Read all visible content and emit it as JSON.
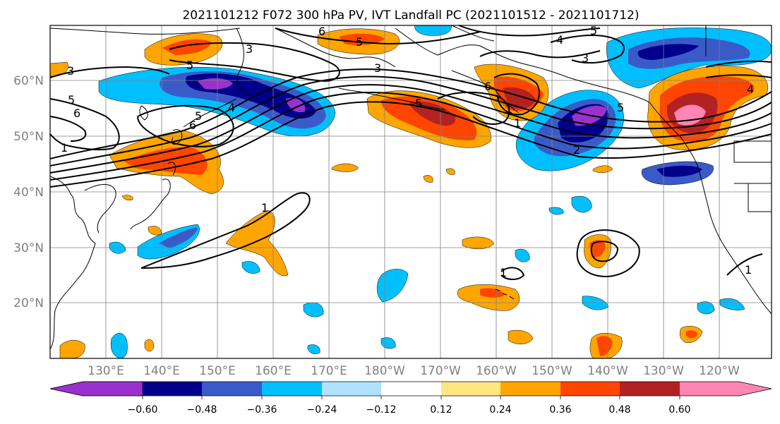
{
  "title": "2021101212 F072 300 hPa PV, IVT Landfall PC (2021101512 - 2021101712)",
  "map": {
    "lon_labels": [
      "130°E",
      "140°E",
      "150°E",
      "160°E",
      "170°E",
      "180°W",
      "170°W",
      "160°W",
      "150°W",
      "140°W",
      "130°W",
      "120°W"
    ],
    "lat_labels": [
      "60°N",
      "50°N",
      "40°N",
      "30°N",
      "20°N"
    ],
    "contour_labels": [
      "3",
      "3",
      "5",
      "5",
      "6",
      "4",
      "5",
      "6",
      "1",
      "5",
      "6",
      "4",
      "3",
      "5",
      "3",
      "5",
      "1",
      "6",
      "1",
      "2",
      "5",
      "4",
      "1",
      "1",
      "1"
    ],
    "gridline_color": "#808080",
    "coastline_color": "#000000"
  },
  "colorbar": {
    "tick_labels": [
      "−0.60",
      "−0.48",
      "−0.36",
      "−0.24",
      "−0.12",
      "0.12",
      "0.24",
      "0.36",
      "0.48",
      "0.60"
    ],
    "colors": [
      "#9932CC",
      "#00008B",
      "#3A5BC7",
      "#00BFFF",
      "#B0E2FF",
      "#FFFFFF",
      "#FFE680",
      "#FFA500",
      "#FF4500",
      "#B22222",
      "#FF85B3"
    ]
  }
}
